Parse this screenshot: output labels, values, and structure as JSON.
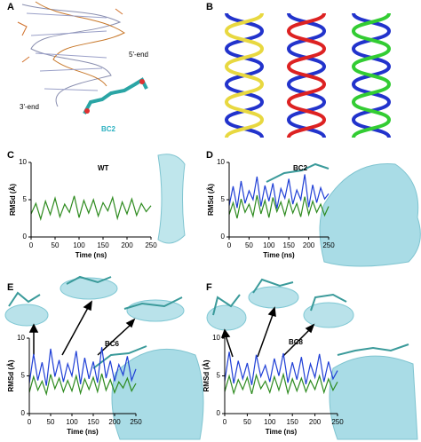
{
  "panels": [
    "A",
    "B",
    "C",
    "D",
    "E",
    "F"
  ],
  "panel_a": {
    "five_end": "5'-end",
    "three_end": "3'-end",
    "ligand": "BC2"
  },
  "chart_data": [
    {
      "type": "line",
      "annotation": "WT",
      "xlabel": "Time (ns)",
      "ylabel": "RMSd (Å)",
      "xlim": [
        0,
        250
      ],
      "ylim": [
        0,
        10
      ],
      "xticks": [
        0,
        50,
        100,
        150,
        200,
        250
      ],
      "yticks": [
        0,
        5,
        10
      ],
      "x": [
        0,
        10,
        20,
        30,
        40,
        50,
        60,
        70,
        80,
        90,
        100,
        110,
        120,
        130,
        140,
        150,
        160,
        170,
        180,
        190,
        200,
        210,
        220,
        230,
        240,
        250
      ],
      "series": [
        {
          "color": "#2e8b1f",
          "values": [
            3.1,
            4.5,
            2.4,
            4.8,
            3.0,
            5.2,
            2.7,
            4.4,
            3.3,
            5.5,
            2.6,
            4.9,
            3.2,
            5.0,
            2.8,
            4.6,
            3.5,
            5.3,
            2.5,
            4.7,
            3.1,
            5.1,
            2.9,
            4.5,
            3.4,
            4.2
          ]
        }
      ]
    },
    {
      "type": "line",
      "annotation": "BC2",
      "xlabel": "Time (ns)",
      "ylabel": "RMSd (Å)",
      "xlim": [
        0,
        250
      ],
      "ylim": [
        0,
        10
      ],
      "xticks": [
        0,
        50,
        100,
        150,
        200,
        250
      ],
      "yticks": [
        0,
        5,
        10
      ],
      "x": [
        0,
        10,
        20,
        30,
        40,
        50,
        60,
        70,
        80,
        90,
        100,
        110,
        120,
        130,
        140,
        150,
        160,
        170,
        180,
        190,
        200,
        210,
        220,
        230,
        240,
        250
      ],
      "series": [
        {
          "color": "#1f3fd6",
          "values": [
            4.2,
            6.8,
            3.9,
            7.5,
            4.5,
            6.2,
            5.0,
            8.1,
            4.1,
            6.9,
            4.8,
            7.2,
            3.8,
            6.5,
            5.2,
            7.8,
            4.4,
            6.3,
            5.0,
            8.4,
            4.0,
            7.0,
            4.6,
            6.6,
            5.1,
            5.8
          ]
        },
        {
          "color": "#2e8b1f",
          "values": [
            3.0,
            4.6,
            2.5,
            5.1,
            3.3,
            4.4,
            2.8,
            5.6,
            3.1,
            4.9,
            2.6,
            5.3,
            3.4,
            4.7,
            2.9,
            5.0,
            3.2,
            4.5,
            2.7,
            5.4,
            3.0,
            4.8,
            3.3,
            4.4,
            2.9,
            4.1
          ]
        }
      ]
    },
    {
      "type": "line",
      "annotation": "BC6",
      "xlabel": "Time (ns)",
      "ylabel": "RMSd (Å)",
      "xlim": [
        0,
        250
      ],
      "ylim": [
        0,
        10
      ],
      "xticks": [
        0,
        50,
        100,
        150,
        200,
        250
      ],
      "yticks": [
        0,
        5,
        10
      ],
      "x": [
        0,
        10,
        20,
        30,
        40,
        50,
        60,
        70,
        80,
        90,
        100,
        110,
        120,
        130,
        140,
        150,
        160,
        170,
        180,
        190,
        200,
        210,
        220,
        230,
        240,
        250
      ],
      "series": [
        {
          "color": "#1f3fd6",
          "values": [
            4.0,
            7.9,
            4.4,
            6.8,
            3.7,
            8.6,
            4.9,
            7.1,
            4.2,
            6.6,
            5.0,
            8.3,
            3.9,
            7.4,
            4.6,
            6.9,
            4.1,
            8.8,
            4.7,
            7.0,
            4.3,
            6.5,
            5.1,
            7.6,
            4.4,
            5.9
          ]
        },
        {
          "color": "#2e8b1f",
          "values": [
            2.8,
            4.9,
            3.1,
            4.3,
            2.6,
            5.2,
            3.3,
            4.7,
            2.9,
            4.4,
            3.0,
            5.0,
            2.7,
            4.6,
            3.2,
            4.8,
            2.9,
            5.3,
            3.1,
            4.5,
            2.8,
            4.2,
            3.4,
            4.7,
            3.0,
            4.0
          ]
        }
      ]
    },
    {
      "type": "line",
      "annotation": "BC8",
      "xlabel": "Time (ns)",
      "ylabel": "RMSd (Å)",
      "xlim": [
        0,
        250
      ],
      "ylim": [
        0,
        10
      ],
      "xticks": [
        0,
        50,
        100,
        150,
        200,
        250
      ],
      "yticks": [
        0,
        5,
        10
      ],
      "x": [
        0,
        10,
        20,
        30,
        40,
        50,
        60,
        70,
        80,
        90,
        100,
        110,
        120,
        130,
        140,
        150,
        160,
        170,
        180,
        190,
        200,
        210,
        220,
        230,
        240,
        250
      ],
      "series": [
        {
          "color": "#1f3fd6",
          "values": [
            4.3,
            8.2,
            4.0,
            7.0,
            4.6,
            6.7,
            3.8,
            7.8,
            4.9,
            6.4,
            4.2,
            7.3,
            5.0,
            8.0,
            4.1,
            6.8,
            4.5,
            7.5,
            3.9,
            6.6,
            4.8,
            7.9,
            4.2,
            6.9,
            4.6,
            5.7
          ]
        },
        {
          "color": "#2e8b1f",
          "values": [
            2.9,
            5.0,
            2.7,
            4.5,
            3.2,
            4.8,
            2.6,
            5.1,
            3.3,
            4.3,
            2.8,
            4.9,
            3.1,
            5.2,
            2.7,
            4.6,
            3.0,
            4.7,
            2.9,
            4.4,
            3.2,
            5.0,
            2.8,
            4.6,
            3.1,
            4.2
          ]
        }
      ]
    }
  ]
}
